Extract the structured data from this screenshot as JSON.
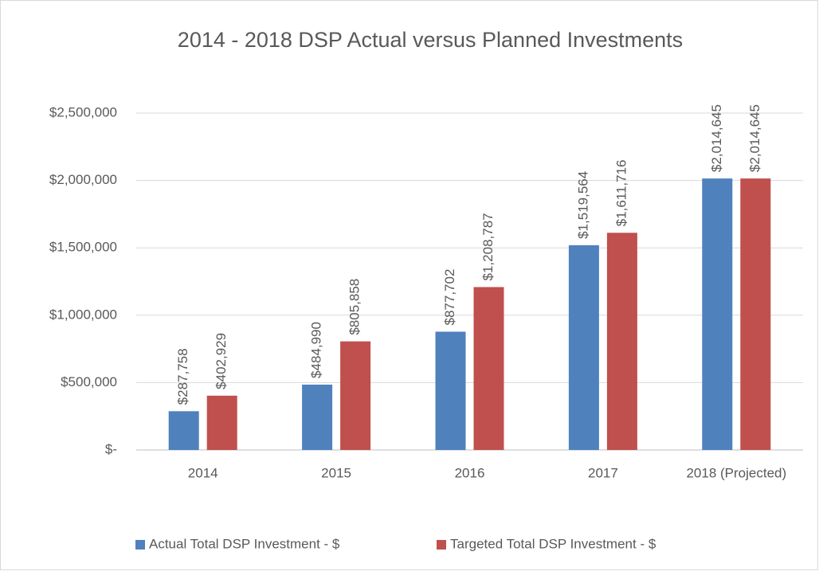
{
  "chart_data": {
    "type": "bar",
    "title": "2014 - 2018  DSP Actual versus Planned Investments",
    "categories": [
      "2014",
      "2015",
      "2016",
      "2017",
      "2018 (Projected)"
    ],
    "series": [
      {
        "name": "Actual Total DSP Investment - $",
        "color": "#4f81bd",
        "values": [
          287758,
          484990,
          877702,
          1519564,
          2014645
        ],
        "value_labels": [
          "$287,758",
          "$484,990",
          "$877,702",
          "$1,519,564",
          "$2,014,645"
        ]
      },
      {
        "name": "Targeted Total DSP Investment - $",
        "color": "#c0504d",
        "values": [
          402929,
          805858,
          1208787,
          1611716,
          2014645
        ],
        "value_labels": [
          "$402,929",
          "$805,858",
          "$1,208,787",
          "$1,611,716",
          "$2,014,645"
        ]
      }
    ],
    "ylim": [
      0,
      2500000
    ],
    "yticks": [
      {
        "value": 0,
        "label": "$-"
      },
      {
        "value": 500000,
        "label": "$500,000"
      },
      {
        "value": 1000000,
        "label": "$1,000,000"
      },
      {
        "value": 1500000,
        "label": "$1,500,000"
      },
      {
        "value": 2000000,
        "label": "$2,000,000"
      },
      {
        "value": 2500000,
        "label": "$2,500,000"
      }
    ],
    "grid": true,
    "legend": "bottom"
  }
}
